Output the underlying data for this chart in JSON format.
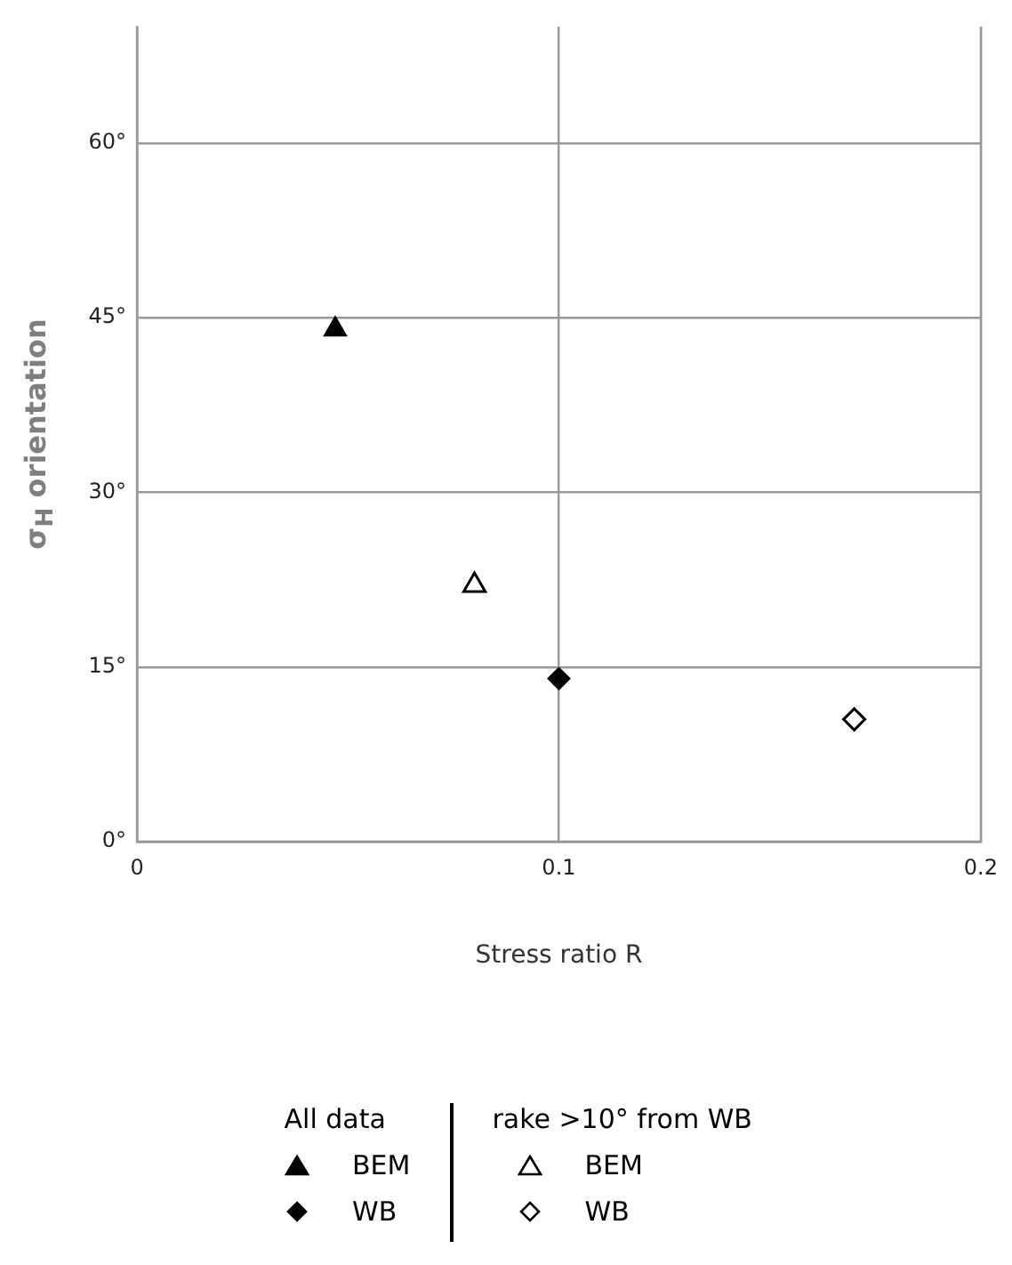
{
  "chart_data": {
    "type": "scatter",
    "xlabel": "Stress ratio R",
    "ylabel": "σ$_{H}$ orientation",
    "xlim": [
      0,
      0.2
    ],
    "xticks": [
      0,
      0.1,
      0.2
    ],
    "ylim": [
      0,
      70
    ],
    "yticks": [
      {
        "value": 0,
        "label": "0°"
      },
      {
        "value": 15,
        "label": "15°"
      },
      {
        "value": 30,
        "label": "30°"
      },
      {
        "value": 45,
        "label": "45°"
      },
      {
        "value": 60,
        "label": "60°"
      }
    ],
    "grid": true,
    "legend": "bottom",
    "legend_title": [
      "All data",
      "rake >10° from WB"
    ],
    "series": [
      {
        "name": "BEM",
        "color": "#000000",
        "marker": "triangle",
        "x": [
          0.047
        ],
        "values": [
          44
        ]
      },
      {
        "name": "WB",
        "color": "#000000",
        "marker": "diamond",
        "x": [
          0.1
        ],
        "values": [
          14
        ]
      },
      {
        "name": "BEM",
        "color": "#000000",
        "marker": "triangle",
        "colors": [
          "#ffffff"
        ],
        "x": [
          0.08
        ],
        "values": [
          22
        ]
      },
      {
        "name": "WB",
        "color": "#000000",
        "marker": "diamond",
        "colors": [
          "#ffffff"
        ],
        "x": [
          0.17
        ],
        "values": [
          10.5
        ]
      }
    ]
  }
}
